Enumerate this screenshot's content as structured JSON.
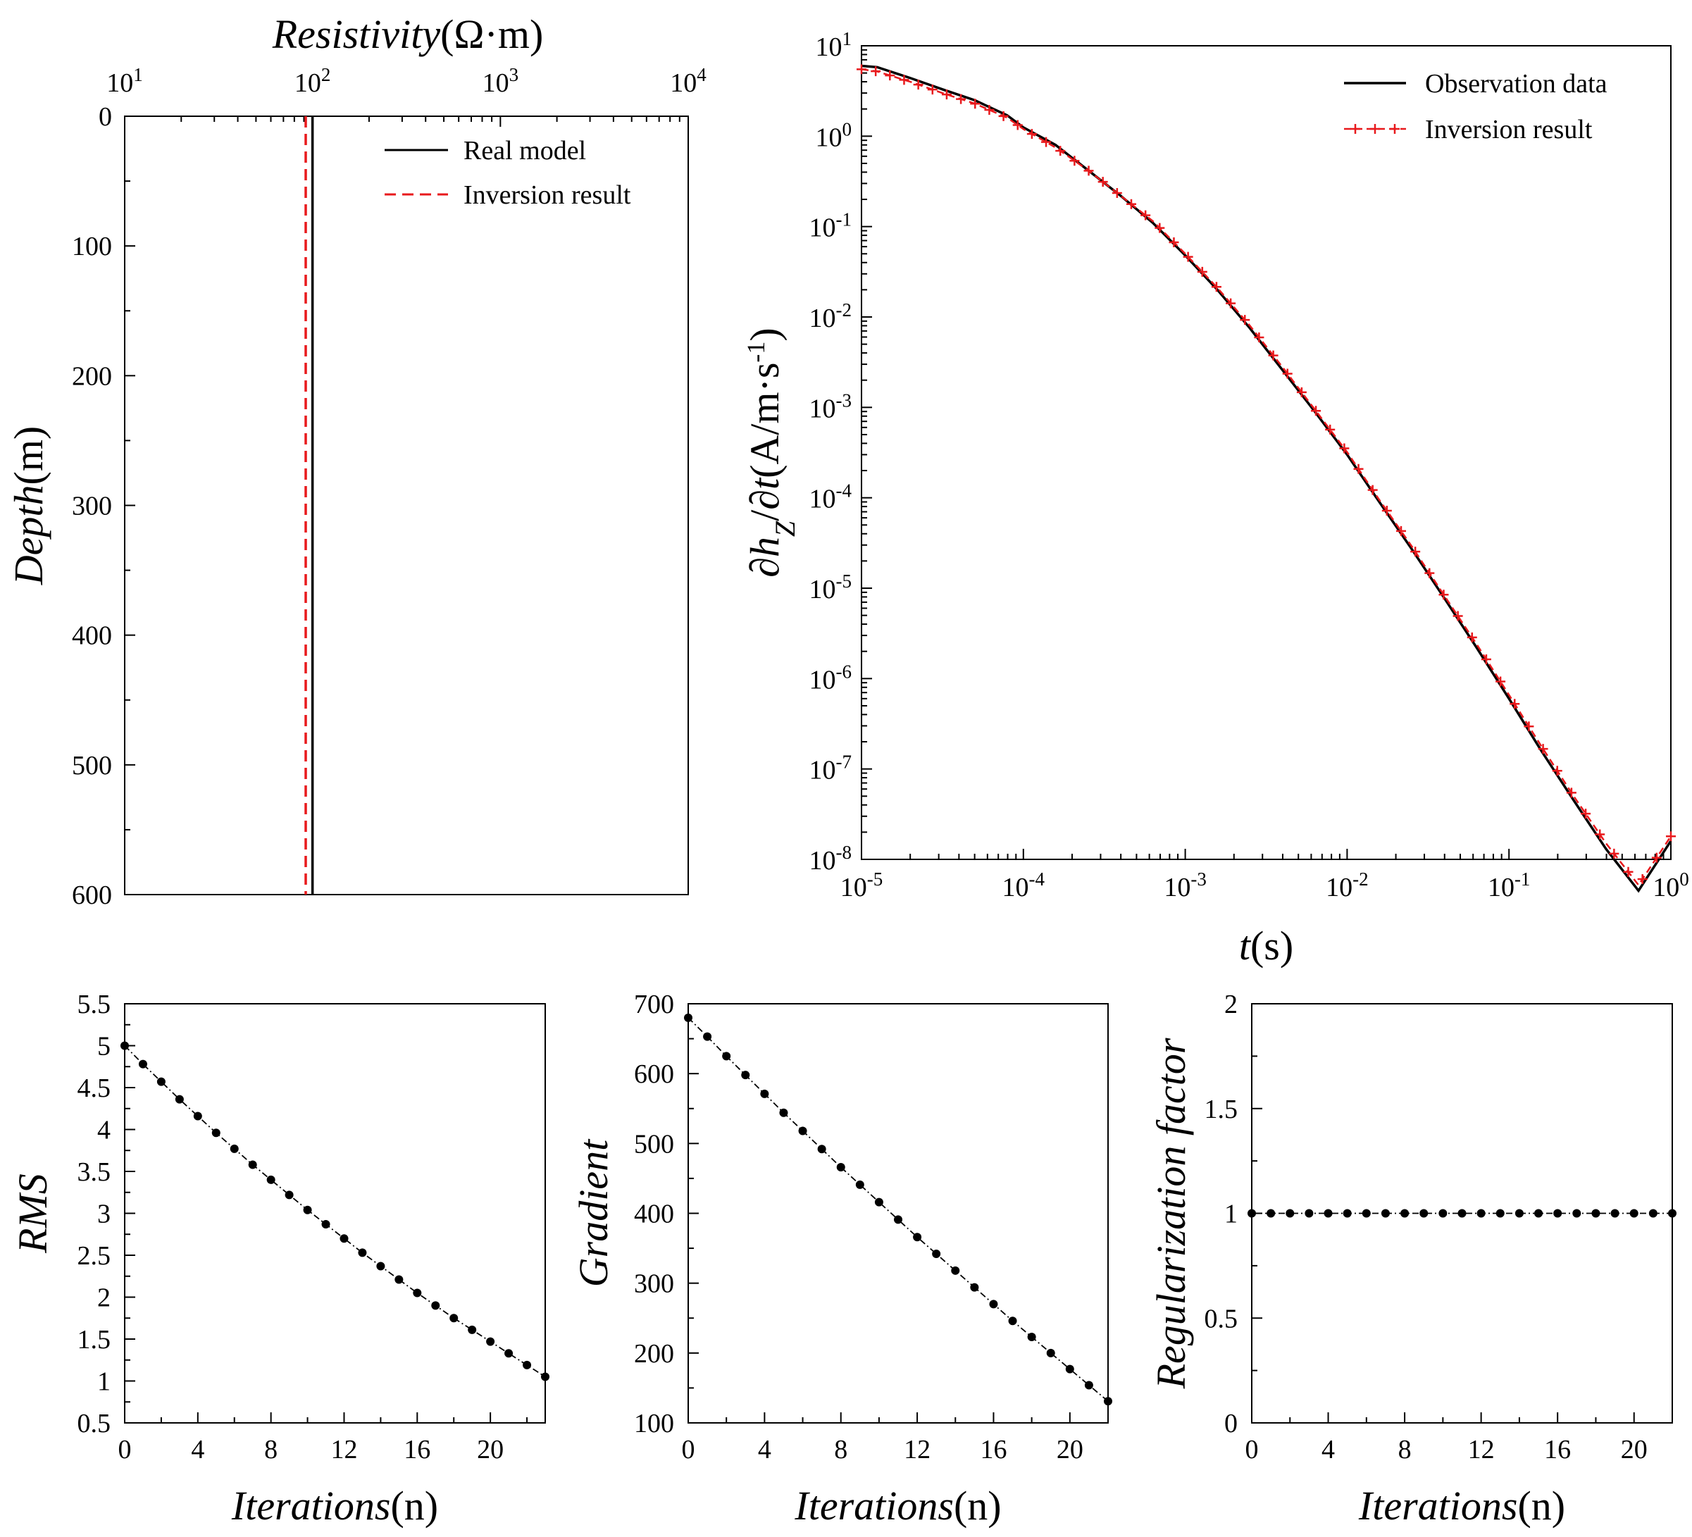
{
  "figure": {
    "panels": [
      "resistivity-depth",
      "dhz-dt-decay",
      "rms-iterations",
      "gradient-iterations",
      "regularization-iterations"
    ]
  },
  "chart_data": [
    {
      "id": "resistivity",
      "type": "line",
      "title": "",
      "xlabel": {
        "italic": "Resistivity",
        "normal": "(Ω·m)"
      },
      "ylabel": {
        "italic": "Depth",
        "normal": "(m)"
      },
      "xscale": "log",
      "xlim": [
        10,
        10000
      ],
      "ylim": [
        0,
        600
      ],
      "yinverted": true,
      "xaxis_position": "top",
      "xticks": [
        {
          "base": "10",
          "exp": "1"
        },
        {
          "base": "10",
          "exp": "2"
        },
        {
          "base": "10",
          "exp": "3"
        },
        {
          "base": "10",
          "exp": "4"
        }
      ],
      "yticks": [
        "0",
        "100",
        "200",
        "300",
        "400",
        "500",
        "600"
      ],
      "series": [
        {
          "name": "Real model",
          "color": "#000000",
          "style": "solid",
          "x": [
            100,
            100
          ],
          "y": [
            0,
            600
          ]
        },
        {
          "name": "Inversion result",
          "color": "#e8191c",
          "style": "dashed",
          "x": [
            92,
            92
          ],
          "y": [
            0,
            600
          ]
        }
      ],
      "legend": "top-right"
    },
    {
      "id": "decay",
      "type": "line",
      "title": "",
      "xlabel": {
        "italic": "t",
        "normal": "(s)"
      },
      "ylabel": {
        "prefix": "∂",
        "italic1": "h",
        "sub": "Z",
        "mid": "/∂",
        "italic2": "t",
        "unit": "(A/m·s",
        "sup": "-1",
        "close": ")"
      },
      "xscale": "log",
      "yscale": "log",
      "xlim": [
        1e-05,
        1
      ],
      "ylim": [
        1e-08,
        10
      ],
      "xticks": [
        {
          "base": "10",
          "exp": "-5"
        },
        {
          "base": "10",
          "exp": "-4"
        },
        {
          "base": "10",
          "exp": "-3"
        },
        {
          "base": "10",
          "exp": "-2"
        },
        {
          "base": "10",
          "exp": "-1"
        },
        {
          "base": "10",
          "exp": "0"
        }
      ],
      "yticks": [
        {
          "base": "10",
          "exp": "1"
        },
        {
          "base": "10",
          "exp": "0"
        },
        {
          "base": "10",
          "exp": "-1"
        },
        {
          "base": "10",
          "exp": "-2"
        },
        {
          "base": "10",
          "exp": "-3"
        },
        {
          "base": "10",
          "exp": "-4"
        },
        {
          "base": "10",
          "exp": "-5"
        },
        {
          "base": "10",
          "exp": "-6"
        },
        {
          "base": "10",
          "exp": "-7"
        },
        {
          "base": "10",
          "exp": "-8"
        }
      ],
      "series": [
        {
          "name": "Observation data",
          "color": "#000000",
          "style": "solid",
          "x": [
            1e-05,
            1.25e-05,
            2e-05,
            3.16e-05,
            5e-05,
            7.94e-05,
            0.0001,
            0.000158,
            0.000251,
            0.000398,
            0.000631,
            0.001,
            0.00158,
            0.00251,
            0.00398,
            0.00631,
            0.01,
            0.0158,
            0.0251,
            0.0398,
            0.0631,
            0.1,
            0.158,
            0.251,
            0.398,
            0.631,
            1
          ],
          "y": [
            6.0,
            5.8,
            4.4,
            3.3,
            2.5,
            1.7,
            1.25,
            0.8,
            0.42,
            0.22,
            0.11,
            0.048,
            0.02,
            0.0075,
            0.0026,
            0.0009,
            0.0003,
            9e-05,
            2.7e-05,
            7.8e-06,
            2.2e-06,
            6e-07,
            1.6e-07,
            4.5e-08,
            1.3e-08,
            4.5e-09,
            1.6e-08
          ]
        },
        {
          "name": "Inversion result",
          "color": "#e8191c",
          "style": "dashed-plus",
          "x": [
            1e-05,
            1.25e-05,
            2e-05,
            3.16e-05,
            5e-05,
            7.94e-05,
            0.0001,
            0.000158,
            0.000251,
            0.000398,
            0.000631,
            0.001,
            0.00158,
            0.00251,
            0.00398,
            0.00631,
            0.01,
            0.0158,
            0.0251,
            0.0398,
            0.0631,
            0.1,
            0.158,
            0.251,
            0.398,
            0.631,
            1
          ],
          "y": [
            5.5,
            5.2,
            4.0,
            3.0,
            2.3,
            1.6,
            1.2,
            0.75,
            0.42,
            0.22,
            0.115,
            0.05,
            0.021,
            0.008,
            0.0028,
            0.00095,
            0.00032,
            9.5e-05,
            2.9e-05,
            8.3e-06,
            2.4e-06,
            6.6e-07,
            1.8e-07,
            5e-08,
            1.5e-08,
            5.2e-09,
            1.8e-08
          ]
        }
      ],
      "legend": "top-right"
    },
    {
      "id": "rms",
      "type": "line",
      "title": "",
      "xlabel": {
        "italic": "Iterations",
        "normal": "(n)"
      },
      "ylabel": {
        "italic": "RMS",
        "normal": ""
      },
      "xlim": [
        0,
        23
      ],
      "ylim": [
        0.5,
        5.5
      ],
      "xticks": [
        "0",
        "4",
        "8",
        "12",
        "16",
        "20"
      ],
      "yticks": [
        "0.5",
        "1",
        "1.5",
        "2",
        "2.5",
        "3",
        "3.5",
        "4",
        "4.5",
        "5",
        "5.5"
      ],
      "series": [
        {
          "name": "RMS",
          "color": "#000000",
          "style": "dashed-dot",
          "x": [
            0,
            1,
            2,
            3,
            4,
            5,
            6,
            7,
            8,
            9,
            10,
            11,
            12,
            13,
            14,
            15,
            16,
            17,
            18,
            19,
            20,
            21,
            22,
            23
          ],
          "y": [
            5.0,
            4.78,
            4.57,
            4.36,
            4.16,
            3.96,
            3.77,
            3.58,
            3.4,
            3.22,
            3.04,
            2.87,
            2.7,
            2.53,
            2.37,
            2.21,
            2.05,
            1.9,
            1.75,
            1.61,
            1.47,
            1.33,
            1.19,
            1.05
          ]
        }
      ]
    },
    {
      "id": "gradient",
      "type": "line",
      "title": "",
      "xlabel": {
        "italic": "Iterations",
        "normal": "(n)"
      },
      "ylabel": {
        "italic": "Gradient",
        "normal": ""
      },
      "xlim": [
        0,
        22
      ],
      "ylim": [
        100,
        700
      ],
      "xticks": [
        "0",
        "4",
        "8",
        "12",
        "16",
        "20"
      ],
      "yticks": [
        "100",
        "200",
        "300",
        "400",
        "500",
        "600",
        "700"
      ],
      "series": [
        {
          "name": "Gradient",
          "color": "#000000",
          "style": "dashed-dot",
          "x": [
            0,
            1,
            2,
            3,
            4,
            5,
            6,
            7,
            8,
            9,
            10,
            11,
            12,
            13,
            14,
            15,
            16,
            17,
            18,
            19,
            20,
            21,
            22
          ],
          "y": [
            680,
            653,
            625,
            598,
            571,
            544,
            518,
            492,
            466,
            441,
            416,
            391,
            366,
            342,
            318,
            294,
            270,
            246,
            223,
            200,
            177,
            154,
            131
          ]
        }
      ]
    },
    {
      "id": "regularization",
      "type": "line",
      "title": "",
      "xlabel": {
        "italic": "Iterations",
        "normal": "(n)"
      },
      "ylabel": {
        "italic": "Regularization factor",
        "normal": ""
      },
      "xlim": [
        0,
        22
      ],
      "ylim": [
        0,
        2
      ],
      "xticks": [
        "0",
        "4",
        "8",
        "12",
        "16",
        "20"
      ],
      "yticks": [
        "0",
        "0.5",
        "1",
        "1.5",
        "2"
      ],
      "series": [
        {
          "name": "Regularization factor",
          "color": "#000000",
          "style": "dashed-dot",
          "x": [
            0,
            1,
            2,
            3,
            4,
            5,
            6,
            7,
            8,
            9,
            10,
            11,
            12,
            13,
            14,
            15,
            16,
            17,
            18,
            19,
            20,
            21,
            22
          ],
          "y": [
            1,
            1,
            1,
            1,
            1,
            1,
            1,
            1,
            1,
            1,
            1,
            1,
            1,
            1,
            1,
            1,
            1,
            1,
            1,
            1,
            1,
            1,
            1
          ]
        }
      ]
    }
  ]
}
